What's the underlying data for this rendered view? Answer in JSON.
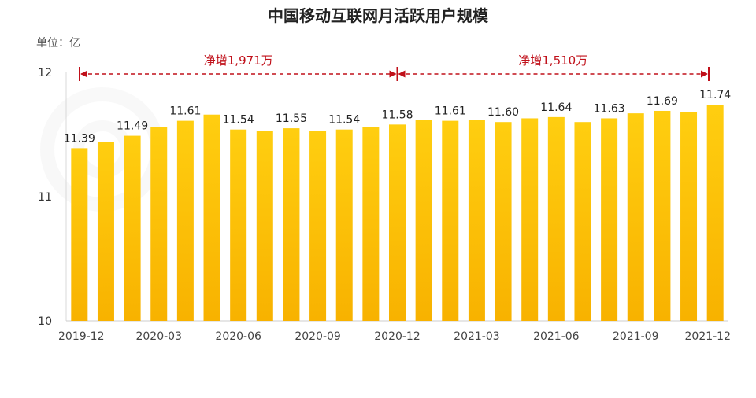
{
  "chart_data": {
    "type": "bar",
    "title": "中国移动互联网月活跃用户规模",
    "unit_label": "单位：亿",
    "ylim": [
      10,
      12
    ],
    "y_ticks": [
      "10",
      "11",
      "12"
    ],
    "categories": [
      "2019-12",
      "2020-01",
      "2020-02",
      "2020-03",
      "2020-04",
      "2020-05",
      "2020-06",
      "2020-07",
      "2020-08",
      "2020-09",
      "2020-10",
      "2020-11",
      "2020-12",
      "2021-01",
      "2021-02",
      "2021-03",
      "2021-04",
      "2021-05",
      "2021-06",
      "2021-07",
      "2021-08",
      "2021-09",
      "2021-10",
      "2021-11",
      "2021-12"
    ],
    "values": [
      11.39,
      11.44,
      11.49,
      11.56,
      11.61,
      11.66,
      11.54,
      11.53,
      11.55,
      11.53,
      11.54,
      11.56,
      11.58,
      11.62,
      11.61,
      11.62,
      11.6,
      11.63,
      11.64,
      11.6,
      11.63,
      11.67,
      11.69,
      11.68,
      11.74
    ],
    "data_labels": [
      "11.39",
      "",
      "11.49",
      "",
      "11.61",
      "",
      "11.54",
      "",
      "11.55",
      "",
      "11.54",
      "",
      "11.58",
      "",
      "11.61",
      "",
      "11.60",
      "",
      "11.64",
      "",
      "11.63",
      "",
      "11.69",
      "",
      "11.74"
    ],
    "x_tick_labels": [
      "2019-12",
      "",
      "",
      "2020-03",
      "",
      "",
      "2020-06",
      "",
      "",
      "2020-09",
      "",
      "",
      "2020-12",
      "",
      "",
      "2021-03",
      "",
      "",
      "2021-06",
      "",
      "",
      "2021-09",
      "",
      "",
      "2021-12"
    ],
    "bar_colors": {
      "top": "#ffce10",
      "bottom": "#f8b200"
    },
    "annotations": [
      {
        "text": "净增1,971万",
        "from_index": 0,
        "to_index": 12
      },
      {
        "text": "净增1,510万",
        "from_index": 12,
        "to_index": 24
      }
    ],
    "annotation_color": "#c0101a",
    "grid": false
  }
}
